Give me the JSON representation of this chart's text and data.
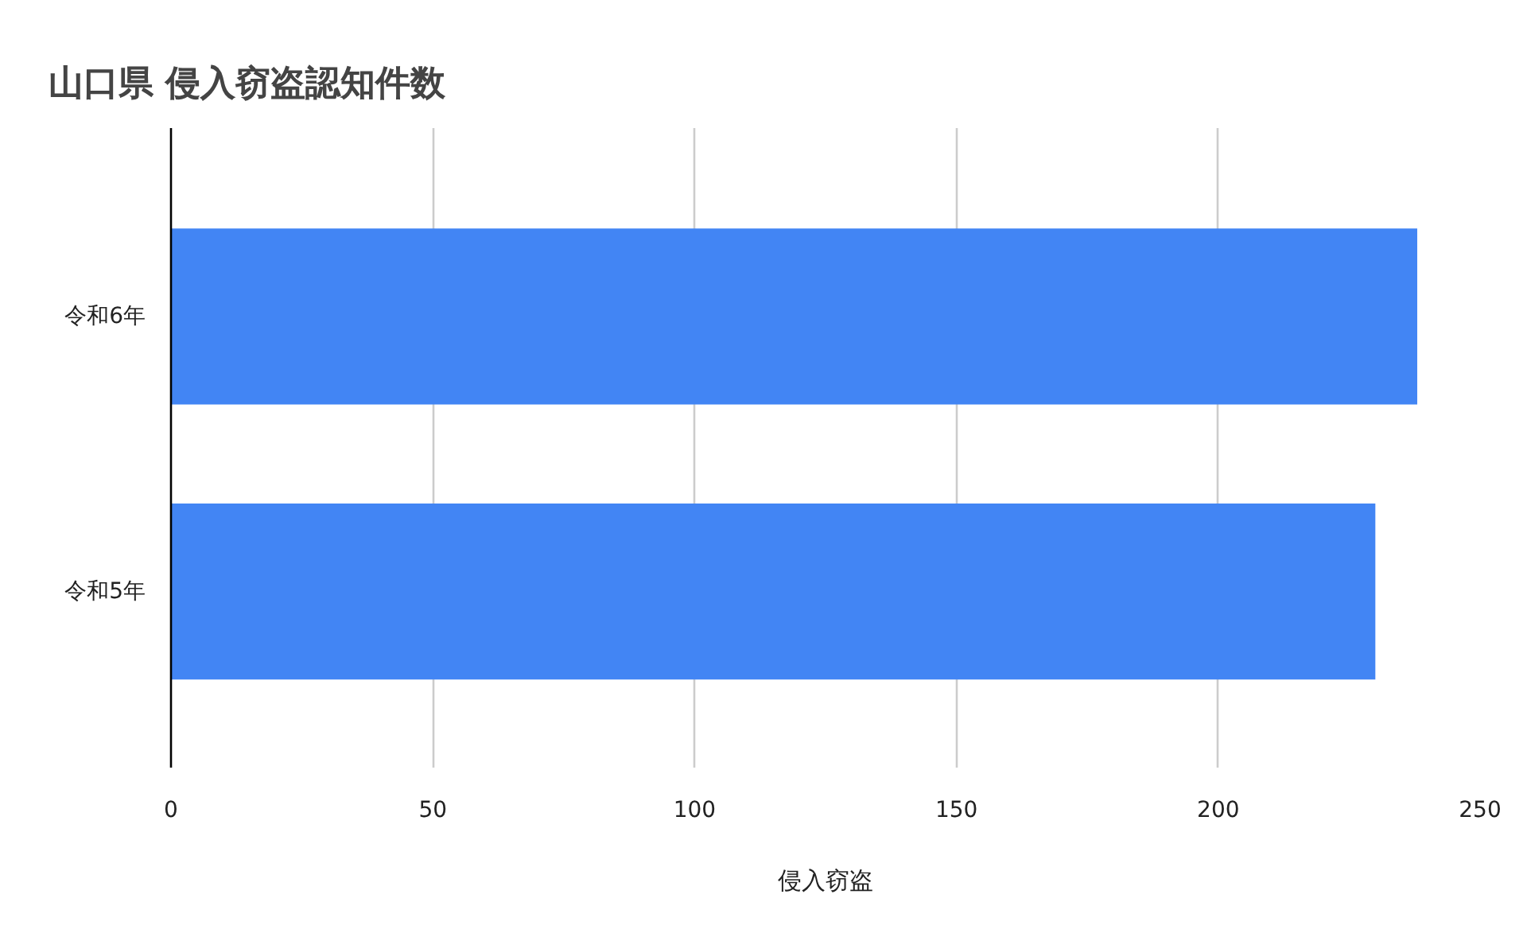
{
  "chart_data": {
    "type": "bar",
    "orientation": "horizontal",
    "title": "山口県 侵入窃盗認知件数",
    "xlabel": "侵入窃盗",
    "categories": [
      "令和6年",
      "令和5年"
    ],
    "values": [
      238,
      230
    ],
    "color": "#4285f4",
    "xlim": [
      0,
      250
    ],
    "xticks": [
      0,
      50,
      100,
      150,
      200,
      250
    ],
    "grid": "x"
  }
}
